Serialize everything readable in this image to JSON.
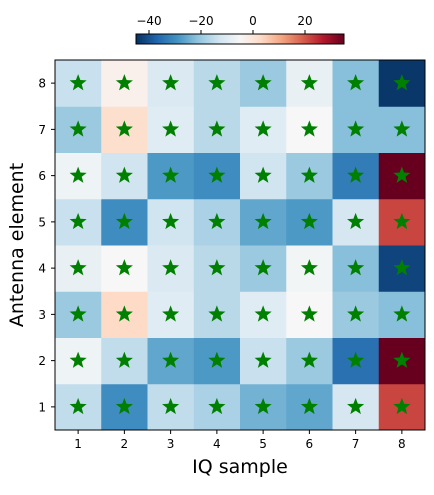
{
  "chart_data": {
    "type": "heatmap",
    "title": "",
    "xlabel": "IQ sample",
    "ylabel": "Antenna element",
    "x_categories": [
      "1",
      "2",
      "3",
      "4",
      "5",
      "6",
      "7",
      "8"
    ],
    "y_categories": [
      "1",
      "2",
      "3",
      "4",
      "5",
      "6",
      "7",
      "8"
    ],
    "values": [
      [
        -15,
        -30,
        -15,
        -18,
        -24,
        -26,
        -12,
        22
      ],
      [
        -7,
        -15,
        -26,
        -28,
        -14,
        -20,
        -35,
        35
      ],
      [
        -20,
        3,
        -10,
        -16,
        -10,
        -5,
        -20,
        -22
      ],
      [
        -8,
        -5,
        -11,
        -16,
        -20,
        -6,
        -22,
        -42
      ],
      [
        -14,
        -30,
        -13,
        -18,
        -26,
        -28,
        -12,
        22
      ],
      [
        -7,
        -13,
        -28,
        -30,
        -13,
        -20,
        -33,
        35
      ],
      [
        -20,
        2,
        -10,
        -16,
        -10,
        -5,
        -22,
        -22
      ],
      [
        -14,
        -3,
        -11,
        -16,
        -20,
        -8,
        -22,
        -44
      ]
    ],
    "colorbar": {
      "range": [
        -45,
        35
      ],
      "ticks": [
        -40,
        -20,
        0,
        20
      ],
      "tick_labels": [
        "−40",
        "−20",
        "0",
        "20"
      ],
      "colormap": "RdBu_r",
      "orientation": "horizontal",
      "position": "top"
    },
    "marker": {
      "shape": "star",
      "color": "#008000",
      "at": "every cell"
    },
    "grid": false,
    "colormap_stops": [
      "#053061",
      "#2166ac",
      "#4393c3",
      "#92c5de",
      "#d1e5f0",
      "#f7f7f7",
      "#fddbc7",
      "#f4a582",
      "#d6604d",
      "#b2182b",
      "#67001f"
    ]
  }
}
